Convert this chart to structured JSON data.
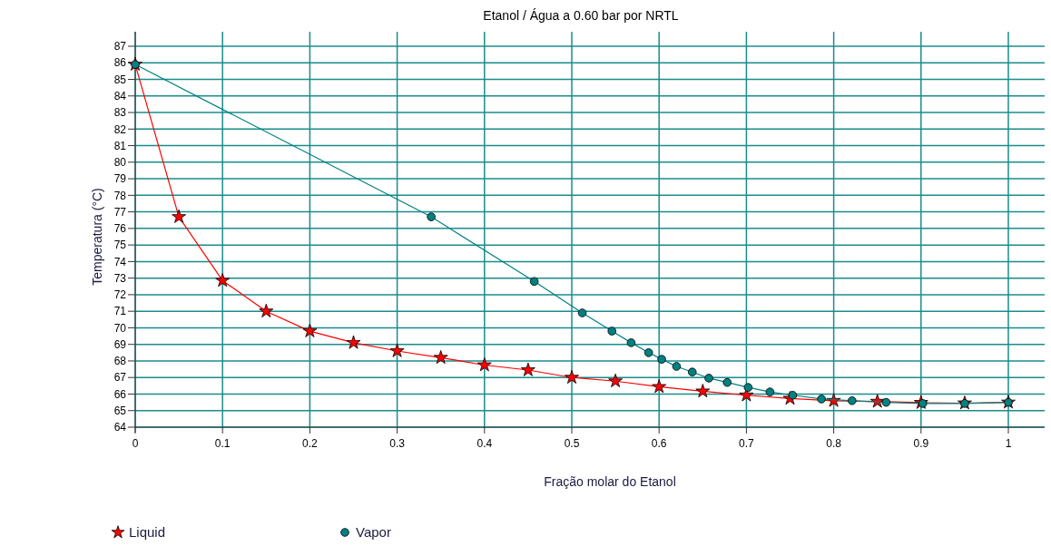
{
  "chart_data": {
    "type": "line",
    "title": "Etanol / Água a 0.60 bar por NRTL",
    "xlabel": "Fração molar do Etanol",
    "ylabel": "Temperatura (°C)",
    "xlim": [
      0,
      1
    ],
    "xticks": [
      0,
      0.1,
      0.2,
      0.3,
      0.4,
      0.5,
      0.6,
      0.7,
      0.8,
      0.9,
      1
    ],
    "ylim": [
      64,
      87
    ],
    "yticks": [
      64,
      65,
      66,
      67,
      68,
      69,
      70,
      71,
      72,
      73,
      74,
      75,
      76,
      77,
      78,
      79,
      80,
      81,
      82,
      83,
      84,
      85,
      86,
      87
    ],
    "grid": true,
    "legend": "bottom left",
    "series": [
      {
        "name": "Liquid",
        "color": "#ff0000",
        "marker": "star",
        "x": [
          0,
          0.05,
          0.1,
          0.15,
          0.2,
          0.25,
          0.3,
          0.35,
          0.4,
          0.45,
          0.5,
          0.55,
          0.6,
          0.65,
          0.7,
          0.75,
          0.8,
          0.85,
          0.9,
          0.95,
          1
        ],
        "values": [
          85.9,
          76.7,
          72.85,
          71.0,
          69.8,
          69.1,
          68.6,
          68.2,
          67.75,
          67.45,
          67.0,
          66.78,
          66.44,
          66.17,
          65.93,
          65.73,
          65.6,
          65.55,
          65.48,
          65.45,
          65.5
        ]
      },
      {
        "name": "Vapor",
        "color": "#008080",
        "marker": "circle",
        "x": [
          0,
          0.339,
          0.457,
          0.512,
          0.546,
          0.568,
          0.588,
          0.603,
          0.62,
          0.638,
          0.657,
          0.678,
          0.702,
          0.727,
          0.753,
          0.786,
          0.821,
          0.86,
          0.902,
          0.95,
          1
        ],
        "values": [
          85.9,
          76.7,
          72.8,
          70.9,
          69.8,
          69.1,
          68.5,
          68.1,
          67.67,
          67.33,
          66.96,
          66.7,
          66.4,
          66.13,
          65.93,
          65.7,
          65.6,
          65.5,
          65.43,
          65.43,
          65.5
        ]
      }
    ]
  }
}
